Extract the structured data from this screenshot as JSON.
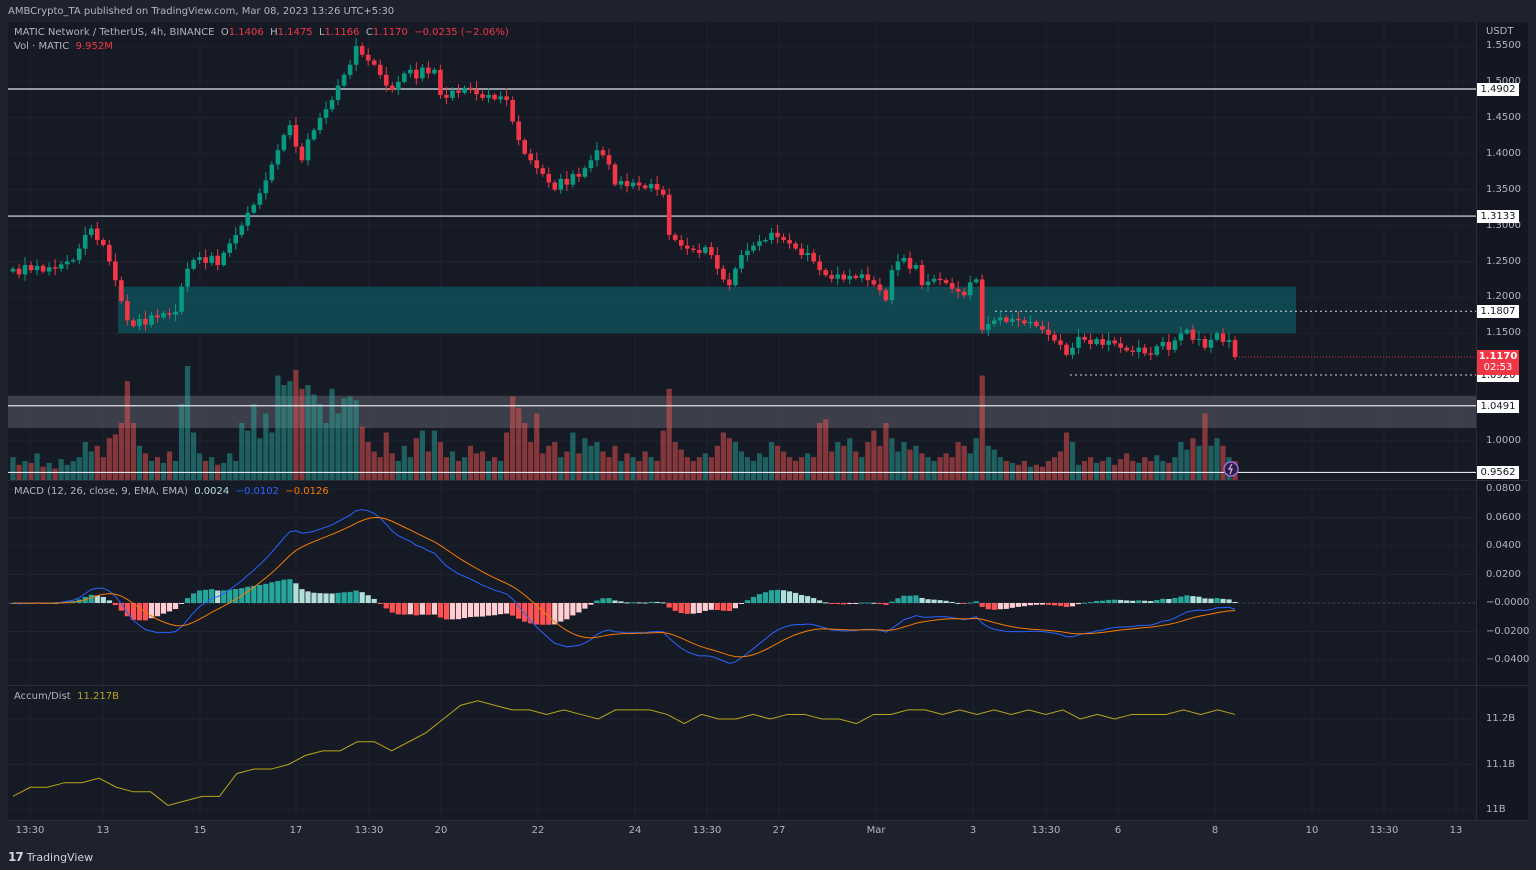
{
  "publisher_line": "AMBCrypto_TA published on TradingView.com, Mar 08, 2023 13:26 UTC+5:30",
  "symbol": {
    "title": "MATIC Network / TetherUS, 4h, BINANCE",
    "open_label": "O",
    "open": "1.1406",
    "high_label": "H",
    "high": "1.1475",
    "low_label": "L",
    "low": "1.1166",
    "close_label": "C",
    "close": "1.1170",
    "change": "−0.0235 (−2.06%)"
  },
  "volume_legend": {
    "label": "Vol · MATIC",
    "value": "9.952M"
  },
  "macd_legend": {
    "label": "MACD (12, 26, close, 9, EMA, EMA)",
    "hist": "0.0024",
    "macd": "−0.0102",
    "signal": "−0.0126"
  },
  "ad_legend": {
    "label": "Accum/Dist",
    "value": "11.217B"
  },
  "currency": "USDT",
  "current_price": {
    "value": "1.1170",
    "countdown": "02:53"
  },
  "footer_brand": "TradingView",
  "colors": {
    "up": "#089981",
    "down": "#f23645",
    "zone_teal": "#0e4b55",
    "zone_gray": "#434651",
    "macd": "#2962ff",
    "signal": "#f57c00",
    "ad": "#b5a61a",
    "background": "#131722"
  },
  "icons": [
    "tradingview-logo-icon",
    "lightning-replay-icon"
  ],
  "chart_data": {
    "type": "candlestick",
    "interval": "4h",
    "price_axis": {
      "ticks": [
        "1.5500",
        "1.5000",
        "1.4500",
        "1.4000",
        "1.3500",
        "1.3000",
        "1.2500",
        "1.2000",
        "1.1500",
        "1.0000"
      ],
      "range": [
        0.95,
        1.56
      ]
    },
    "time_axis": {
      "ticks": [
        "13:30",
        "13",
        "15",
        "17",
        "13:30",
        "20",
        "22",
        "24",
        "13:30",
        "27",
        "Mar",
        "3",
        "13:30",
        "6",
        "8",
        "10",
        "13:30",
        "13"
      ]
    },
    "horizontal_levels": [
      {
        "label": "1.4902",
        "price": 1.4902,
        "style": "solid"
      },
      {
        "label": "1.3133",
        "price": 1.3133,
        "style": "solid"
      },
      {
        "label": "1.1807",
        "price": 1.1807,
        "style": "dotted"
      },
      {
        "label": "1.0920",
        "price": 1.092,
        "style": "dotted"
      },
      {
        "label": "1.0491",
        "price": 1.0491,
        "style": "solid"
      },
      {
        "label": "0.9562",
        "price": 0.9562,
        "style": "solid"
      }
    ],
    "zones": [
      {
        "kind": "teal",
        "from": 1.15,
        "to": 1.215
      },
      {
        "kind": "gray",
        "from": 1.018,
        "to": 1.063
      }
    ],
    "close": [
      1.24,
      1.232,
      1.245,
      1.238,
      1.244,
      1.236,
      1.242,
      1.24,
      1.246,
      1.25,
      1.252,
      1.268,
      1.287,
      1.296,
      1.28,
      1.273,
      1.25,
      1.224,
      1.195,
      1.168,
      1.16,
      1.17,
      1.162,
      1.175,
      1.172,
      1.178,
      1.176,
      1.18,
      1.215,
      1.24,
      1.252,
      1.256,
      1.248,
      1.258,
      1.245,
      1.262,
      1.275,
      1.287,
      1.3,
      1.318,
      1.329,
      1.345,
      1.363,
      1.385,
      1.405,
      1.426,
      1.44,
      1.41,
      1.391,
      1.42,
      1.433,
      1.45,
      1.462,
      1.475,
      1.495,
      1.51,
      1.524,
      1.55,
      1.538,
      1.53,
      1.524,
      1.51,
      1.495,
      1.489,
      1.5,
      1.512,
      1.517,
      1.505,
      1.52,
      1.512,
      1.517,
      1.482,
      1.478,
      1.488,
      1.485,
      1.492,
      1.49,
      1.483,
      1.478,
      1.482,
      1.476,
      1.48,
      1.475,
      1.445,
      1.419,
      1.4,
      1.391,
      1.38,
      1.372,
      1.36,
      1.35,
      1.365,
      1.357,
      1.372,
      1.368,
      1.38,
      1.391,
      1.405,
      1.398,
      1.385,
      1.357,
      1.362,
      1.355,
      1.36,
      1.356,
      1.352,
      1.358,
      1.35,
      1.343,
      1.287,
      1.28,
      1.272,
      1.268,
      1.266,
      1.262,
      1.27,
      1.259,
      1.24,
      1.225,
      1.217,
      1.24,
      1.259,
      1.265,
      1.272,
      1.278,
      1.28,
      1.29,
      1.284,
      1.28,
      1.275,
      1.268,
      1.259,
      1.262,
      1.25,
      1.238,
      1.231,
      1.226,
      1.232,
      1.225,
      1.23,
      1.227,
      1.232,
      1.224,
      1.218,
      1.21,
      1.196,
      1.238,
      1.25,
      1.255,
      1.24,
      1.245,
      1.217,
      1.222,
      1.226,
      1.224,
      1.22,
      1.212,
      1.208,
      1.203,
      1.221,
      1.225,
      1.155,
      1.163,
      1.168,
      1.172,
      1.166,
      1.17,
      1.168,
      1.164,
      1.166,
      1.16,
      1.155,
      1.148,
      1.14,
      1.134,
      1.12,
      1.13,
      1.145,
      1.141,
      1.135,
      1.142,
      1.134,
      1.14,
      1.136,
      1.13,
      1.126,
      1.124,
      1.13,
      1.122,
      1.12,
      1.132,
      1.138,
      1.127,
      1.14,
      1.15,
      1.155,
      1.141,
      1.142,
      1.13,
      1.141,
      1.15,
      1.138,
      1.1406,
      1.117
    ],
    "volume_millions": [
      12,
      8,
      10,
      9,
      14,
      7,
      9,
      6,
      11,
      8,
      10,
      12,
      20,
      15,
      18,
      12,
      22,
      24,
      30,
      52,
      30,
      18,
      14,
      10,
      12,
      9,
      15,
      10,
      40,
      60,
      25,
      14,
      10,
      12,
      8,
      9,
      14,
      10,
      30,
      26,
      40,
      22,
      35,
      25,
      55,
      50,
      52,
      58,
      48,
      50,
      45,
      40,
      30,
      48,
      35,
      43,
      44,
      42,
      28,
      20,
      15,
      12,
      25,
      14,
      10,
      18,
      12,
      22,
      26,
      15,
      26,
      20,
      12,
      15,
      10,
      12,
      18,
      14,
      15,
      10,
      12,
      10,
      25,
      44,
      38,
      30,
      20,
      35,
      14,
      18,
      20,
      12,
      15,
      25,
      14,
      22,
      18,
      20,
      15,
      12,
      18,
      10,
      14,
      12,
      10,
      15,
      12,
      10,
      26,
      48,
      20,
      16,
      12,
      10,
      12,
      14,
      12,
      18,
      25,
      22,
      20,
      15,
      12,
      10,
      14,
      12,
      20,
      18,
      15,
      12,
      10,
      12,
      14,
      12,
      30,
      32,
      15,
      20,
      18,
      22,
      15,
      12,
      20,
      26,
      18,
      30,
      22,
      15,
      20,
      16,
      18,
      14,
      12,
      10,
      12,
      14,
      12,
      20,
      18,
      14,
      22,
      55,
      18,
      16,
      12,
      10,
      9,
      8,
      10,
      7,
      8,
      7,
      10,
      12,
      15,
      25,
      20,
      8,
      10,
      12,
      9,
      10,
      12,
      8,
      11,
      14,
      10,
      9,
      12,
      10,
      13,
      10,
      9,
      12,
      20,
      16,
      22,
      18,
      35,
      18,
      22,
      18,
      12,
      10
    ],
    "macd_axis": {
      "ticks": [
        "0.0800",
        "0.0600",
        "0.0400",
        "0.0200",
        "−0.0000",
        "−0.0200",
        "−0.0400"
      ],
      "range": [
        -0.05,
        0.085
      ]
    },
    "ad_axis": {
      "ticks": [
        "11.2B",
        "11.1B",
        "11B"
      ]
    },
    "accum_dist_billions": [
      11.03,
      11.05,
      11.05,
      11.06,
      11.06,
      11.07,
      11.05,
      11.04,
      11.04,
      11.01,
      11.02,
      11.03,
      11.03,
      11.08,
      11.09,
      11.09,
      11.1,
      11.12,
      11.13,
      11.13,
      11.15,
      11.15,
      11.13,
      11.15,
      11.17,
      11.2,
      11.23,
      11.24,
      11.23,
      11.22,
      11.22,
      11.21,
      11.22,
      11.21,
      11.2,
      11.22,
      11.22,
      11.22,
      11.21,
      11.19,
      11.21,
      11.2,
      11.2,
      11.21,
      11.2,
      11.21,
      11.21,
      11.2,
      11.2,
      11.19,
      11.21,
      11.21,
      11.22,
      11.22,
      11.21,
      11.22,
      11.21,
      11.22,
      11.21,
      11.22,
      11.21,
      11.22,
      11.2,
      11.21,
      11.2,
      11.21,
      11.21,
      11.21,
      11.22,
      11.21,
      11.22,
      11.21
    ]
  }
}
